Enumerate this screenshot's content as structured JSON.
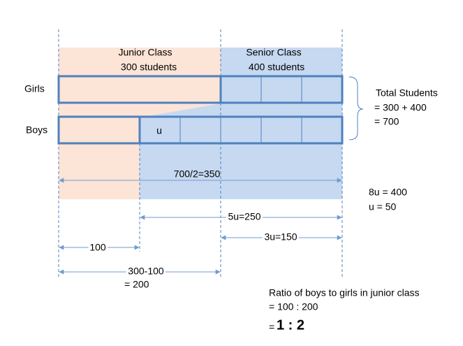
{
  "columns": {
    "junior": {
      "name": "Junior Class",
      "count": "300 students"
    },
    "senior": {
      "name": "Senior Class",
      "count": "400 students"
    }
  },
  "rows": {
    "girls": "Girls",
    "boys": "Boys"
  },
  "unit_label": "u",
  "total": {
    "lines": [
      "Total Students",
      "= 300 + 400",
      "= 700"
    ]
  },
  "measures": {
    "half": "700/2=350",
    "five_u": "5u=250",
    "three_u": "3u=150",
    "hundred": "100",
    "diff": [
      "300-100",
      "= 200"
    ]
  },
  "unit_calc": [
    "8u = 400",
    "u = 50"
  ],
  "ratio": {
    "lines": [
      "Ratio of boys to girls in junior class",
      "= 100 : 200"
    ],
    "eq": "=",
    "result": "1 : 2"
  }
}
